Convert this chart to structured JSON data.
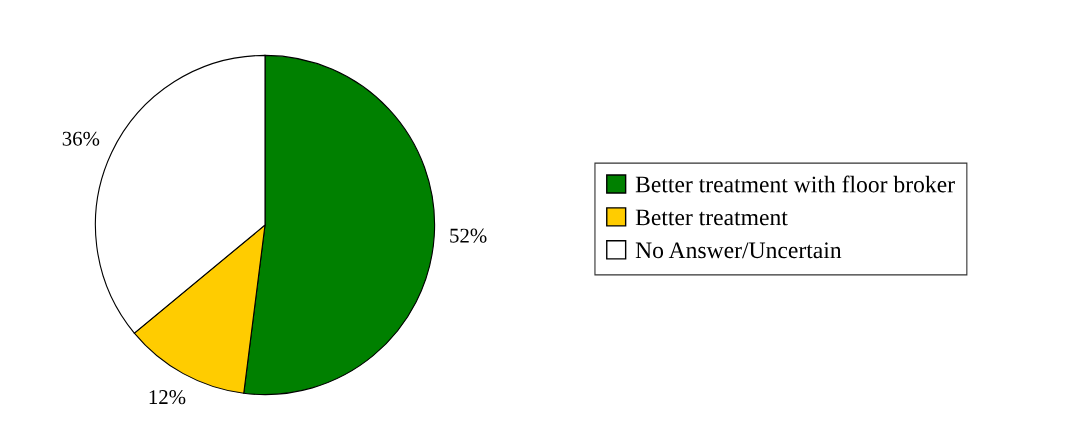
{
  "chart_data": {
    "type": "pie",
    "categories": [
      "Better treatment with floor broker",
      "Better treatment",
      "No Answer/Uncertain"
    ],
    "values": [
      52,
      12,
      36
    ],
    "colors": [
      "#008000",
      "#ffcc00",
      "#ffffff"
    ],
    "value_labels": [
      "52%",
      "12%",
      "36%"
    ],
    "legend": "right"
  }
}
